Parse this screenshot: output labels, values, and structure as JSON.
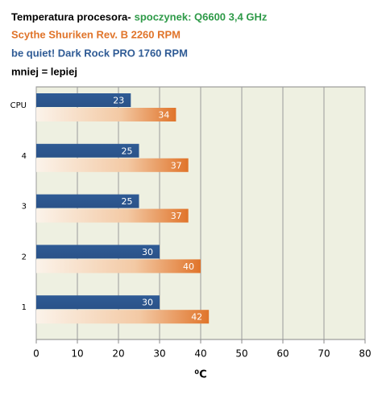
{
  "chart_data": {
    "type": "bar",
    "orientation": "horizontal",
    "title": "Temperatura procesora-",
    "subtitle": "spoczynek: Q6600 3,4 GHz",
    "subtitle_color": "#2e9a48",
    "note": "mniej = lepiej",
    "xlabel": "⁰C",
    "categories": [
      "CPU",
      "4",
      "3",
      "2",
      "1"
    ],
    "series": [
      {
        "name": "Scythe Shuriken Rev. B 2260  RPM",
        "color": "#e0742a",
        "values": [
          34,
          37,
          37,
          40,
          42
        ]
      },
      {
        "name": "be quiet! Dark Rock PRO 1760  RPM",
        "color": "#2f5b95",
        "values": [
          23,
          25,
          25,
          30,
          30
        ]
      }
    ],
    "xlim": [
      0,
      80
    ],
    "xticks": [
      0,
      10,
      20,
      30,
      40,
      50,
      60,
      70,
      80
    ],
    "grid": true
  }
}
